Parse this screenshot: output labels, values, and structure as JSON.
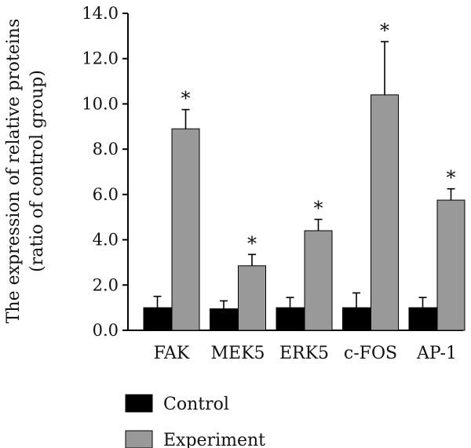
{
  "chart_data": {
    "type": "bar",
    "categories": [
      "FAK",
      "MEK5",
      "ERK5",
      "c-FOS",
      "AP-1"
    ],
    "series": [
      {
        "name": "Control",
        "values": [
          1.0,
          0.95,
          1.0,
          1.0,
          1.0
        ],
        "errors": [
          0.5,
          0.35,
          0.45,
          0.65,
          0.45
        ],
        "color": "#000000",
        "annotations": [
          "",
          "",
          "",
          "",
          ""
        ]
      },
      {
        "name": "Experiment",
        "values": [
          8.9,
          2.85,
          4.4,
          10.4,
          5.75
        ],
        "errors": [
          0.85,
          0.5,
          0.5,
          2.35,
          0.5
        ],
        "color": "#999999",
        "annotations": [
          "*",
          "*",
          "*",
          "*",
          "*"
        ]
      }
    ],
    "ylabel_line1": "The expression of relative proteins",
    "ylabel_line2": "(ratio of control group)",
    "ylim": [
      0,
      14
    ],
    "yticks": [
      "0.0",
      "2.0",
      "4.0",
      "6.0",
      "8.0",
      "10.0",
      "12.0",
      "14.0"
    ],
    "ytick_values": [
      0,
      2,
      4,
      6,
      8,
      10,
      12,
      14
    ],
    "legend_position": "bottom-left"
  }
}
